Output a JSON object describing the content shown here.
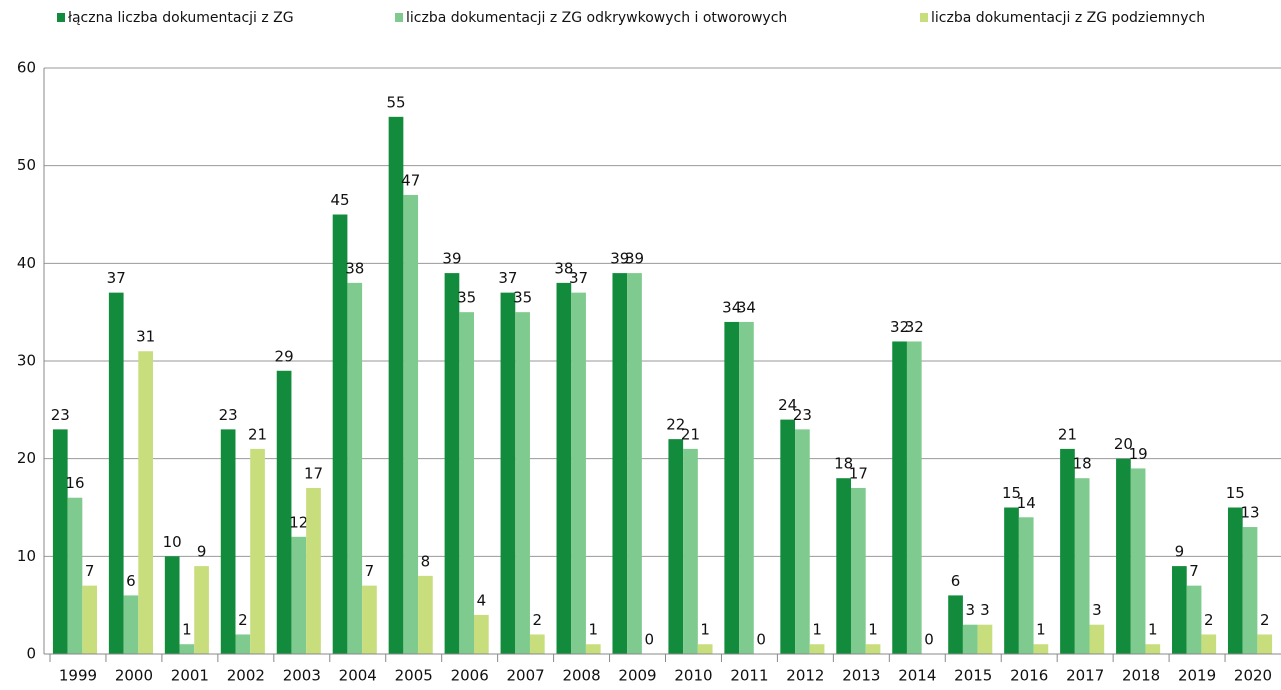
{
  "chart_data": {
    "type": "bar",
    "categories": [
      "1999",
      "2000",
      "2001",
      "2002",
      "2003",
      "2004",
      "2005",
      "2006",
      "2007",
      "2008",
      "2009",
      "2010",
      "2011",
      "2012",
      "2013",
      "2014",
      "2015",
      "2016",
      "2017",
      "2018",
      "2019",
      "2020"
    ],
    "series": [
      {
        "name": "łączna liczba dokumentacji z ZG",
        "color": "#138b3c",
        "values": [
          23,
          37,
          10,
          23,
          29,
          45,
          55,
          39,
          37,
          38,
          39,
          22,
          34,
          24,
          18,
          32,
          6,
          15,
          21,
          20,
          9,
          15
        ]
      },
      {
        "name": "liczba dokumentacji z ZG odkrywkowych i otworowych",
        "color": "#7fca8e",
        "values": [
          16,
          6,
          1,
          2,
          12,
          38,
          47,
          35,
          35,
          37,
          39,
          21,
          34,
          23,
          17,
          32,
          3,
          14,
          18,
          19,
          7,
          13
        ]
      },
      {
        "name": "liczba dokumentacji z ZG podziemnych",
        "color": "#c8de7d",
        "values": [
          7,
          31,
          9,
          21,
          17,
          7,
          8,
          4,
          2,
          1,
          0,
          1,
          0,
          1,
          1,
          0,
          3,
          1,
          3,
          1,
          2,
          2
        ]
      }
    ],
    "ylim": [
      0,
      60
    ],
    "yticks": [
      0,
      10,
      20,
      30,
      40,
      50,
      60
    ],
    "grid": true,
    "legend": "top"
  }
}
